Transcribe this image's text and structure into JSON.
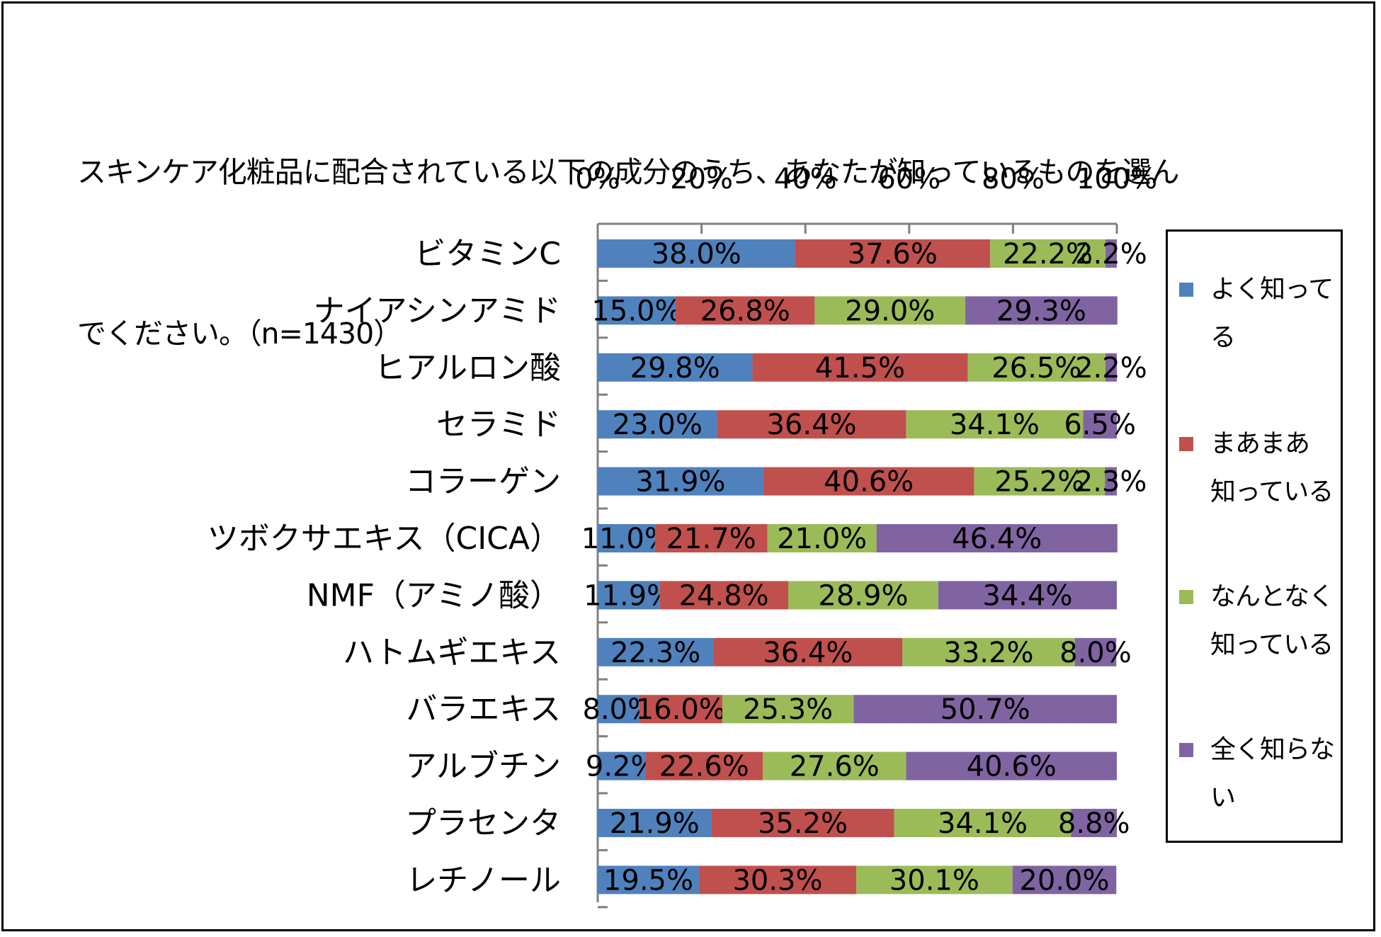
{
  "colors": {
    "well": "#4F81BD",
    "somewhat": "#C0504D",
    "vaguely": "#9BBB59",
    "not_at_all": "#8064A2",
    "axis": "#808080"
  },
  "chart_data": {
    "type": "bar",
    "orientation": "horizontal",
    "stacked": "percent",
    "title": "スキンケア化粧品に配合されている以下の成分のうち、あなたが知っているものを選んでください。（n=1430）",
    "xlabel": "",
    "ylabel": "",
    "xlim": [
      0,
      100
    ],
    "xticks": [
      "0%",
      "20%",
      "40%",
      "60%",
      "80%",
      "100%"
    ],
    "legend_position": "right",
    "categories": [
      "ビタミンC",
      "ナイアシンアミド",
      "ヒアルロン酸",
      "セラミド",
      "コラーゲン",
      "ツボクサエキス（CICA）",
      "NMF（アミノ酸）",
      "ハトムギエキス",
      "バラエキス",
      "アルブチン",
      "プラセンタ",
      "レチノール"
    ],
    "series": [
      {
        "name": "よく知ってる",
        "color": "#4F81BD",
        "values": [
          38.0,
          15.0,
          29.8,
          23.0,
          31.9,
          11.0,
          11.9,
          22.3,
          8.0,
          9.2,
          21.9,
          19.5
        ]
      },
      {
        "name": "まあまあ知っている",
        "color": "#C0504D",
        "values": [
          37.6,
          26.8,
          41.5,
          36.4,
          40.6,
          21.7,
          24.8,
          36.4,
          16.0,
          22.6,
          35.2,
          30.3
        ]
      },
      {
        "name": "なんとなく知っている",
        "color": "#9BBB59",
        "values": [
          22.2,
          29.0,
          26.5,
          34.1,
          25.2,
          21.0,
          28.9,
          33.2,
          25.3,
          27.6,
          34.1,
          30.1
        ]
      },
      {
        "name": "全く知らない",
        "color": "#8064A2",
        "values": [
          2.2,
          29.3,
          2.2,
          6.5,
          2.3,
          46.4,
          34.4,
          8.0,
          50.7,
          40.6,
          8.8,
          20.0
        ]
      }
    ],
    "data_labels": [
      [
        "38.0%",
        "37.6%",
        "22.2%",
        "2.2%"
      ],
      [
        "15.0%",
        "26.8%",
        "29.0%",
        "29.3%"
      ],
      [
        "29.8%",
        "41.5%",
        "26.5%",
        "2.2%"
      ],
      [
        "23.0%",
        "36.4%",
        "34.1%",
        "6.5%"
      ],
      [
        "31.9%",
        "40.6%",
        "25.2%",
        "2.3%"
      ],
      [
        "11.0%",
        "21.7%",
        "21.0%",
        "46.4%"
      ],
      [
        "11.9%",
        "24.8%",
        "28.9%",
        "34.4%"
      ],
      [
        "22.3%",
        "36.4%",
        "33.2%",
        "8.0%"
      ],
      [
        "8.0%",
        "16.0%",
        "25.3%",
        "50.7%"
      ],
      [
        "9.2%",
        "22.6%",
        "27.6%",
        "40.6%"
      ],
      [
        "21.9%",
        "35.2%",
        "34.1%",
        "8.8%"
      ],
      [
        "19.5%",
        "30.3%",
        "30.1%",
        "20.0%"
      ]
    ]
  },
  "title_lines": [
    "スキンケア化粧品に配合されている以下の成分のうち、あなたが知っているものを選ん",
    "でください。（n=1430）"
  ],
  "legend": {
    "items": [
      {
        "lines": [
          "よく知ってる"
        ]
      },
      {
        "lines": [
          "まあまあ",
          "知っている"
        ]
      },
      {
        "lines": [
          "なんとなく",
          "知っている"
        ]
      },
      {
        "lines": [
          "全く知らな",
          "い"
        ]
      }
    ]
  }
}
